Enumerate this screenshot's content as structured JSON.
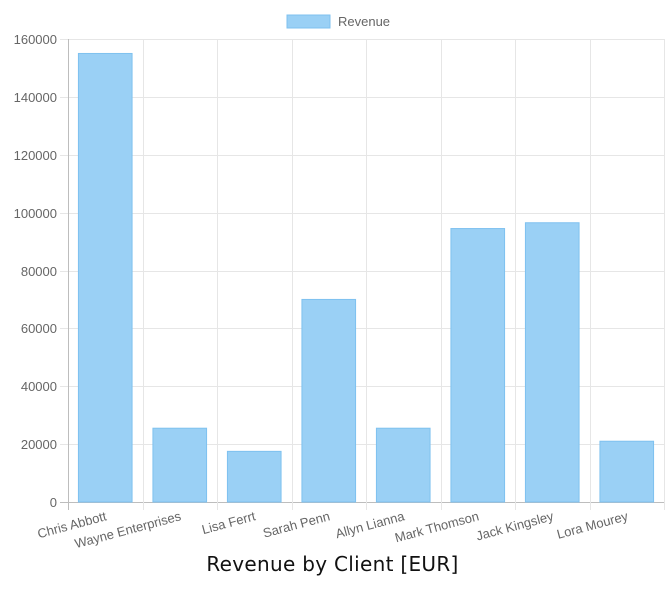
{
  "chart_data": {
    "type": "bar",
    "title": "Revenue by Client [EUR]",
    "xlabel": "",
    "ylabel": "",
    "categories": [
      "Chris Abbott",
      "Wayne Enterprises",
      "Lisa Ferrt",
      "Sarah  Penn",
      "Allyn Lianna",
      "Mark Thomson",
      "Jack Kingsley",
      "Lora Mourey"
    ],
    "series": [
      {
        "name": "Revenue",
        "values": [
          155000,
          25500,
          17500,
          70000,
          25500,
          94500,
          96500,
          21000
        ]
      }
    ],
    "ylim": [
      0,
      160000
    ],
    "yticks": [
      0,
      20000,
      40000,
      60000,
      80000,
      100000,
      120000,
      140000,
      160000
    ],
    "grid": true,
    "legend_position": "top-center",
    "colors": {
      "bar_fill": "#9ad0f5",
      "bar_stroke": "#7fc1ef",
      "grid": "#e6e6e6",
      "axis": "#bdbdbd",
      "text": "#666666"
    }
  }
}
